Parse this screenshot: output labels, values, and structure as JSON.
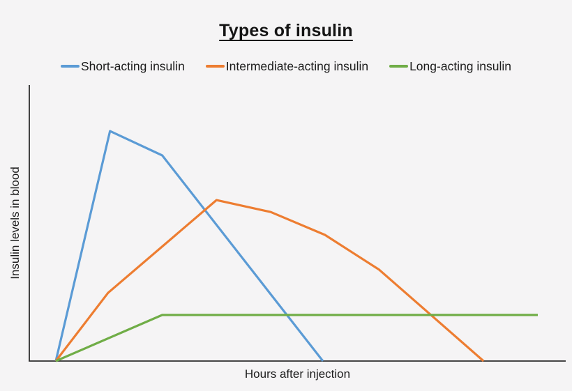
{
  "chart_data": {
    "type": "line",
    "title": "Types of insulin",
    "xlabel": "Hours after injection",
    "ylabel": "Insulin levels in blood",
    "xlim": [
      0,
      25.4
    ],
    "ylim": [
      0,
      100
    ],
    "grid": false,
    "axis_tick_labels": "none (qualitative axes)",
    "legend_position": "top",
    "x_unit": "hours after injection (estimated, axis unlabeled)",
    "y_unit": "relative insulin level, % of plot height (estimated, axis unlabeled)",
    "axis_color": "#2e2e2e",
    "background_color": "#f5f4f5",
    "series": [
      {
        "name": "Short-acting insulin",
        "color": "#5B9BD5",
        "points": [
          [
            0,
            0
          ],
          [
            2.7,
            83.3
          ],
          [
            5.3,
            74.5
          ],
          [
            13.3,
            0
          ]
        ]
      },
      {
        "name": "Intermediate-acting insulin",
        "color": "#ED7D31",
        "points": [
          [
            0,
            0
          ],
          [
            2.6,
            24.7
          ],
          [
            8.0,
            58.3
          ],
          [
            10.7,
            54.0
          ],
          [
            13.4,
            45.7
          ],
          [
            16.1,
            33.1
          ],
          [
            21.3,
            0
          ]
        ]
      },
      {
        "name": "Long-acting insulin",
        "color": "#70AD47",
        "points": [
          [
            0,
            0
          ],
          [
            5.3,
            16.7
          ],
          [
            24.0,
            16.7
          ]
        ]
      }
    ]
  }
}
